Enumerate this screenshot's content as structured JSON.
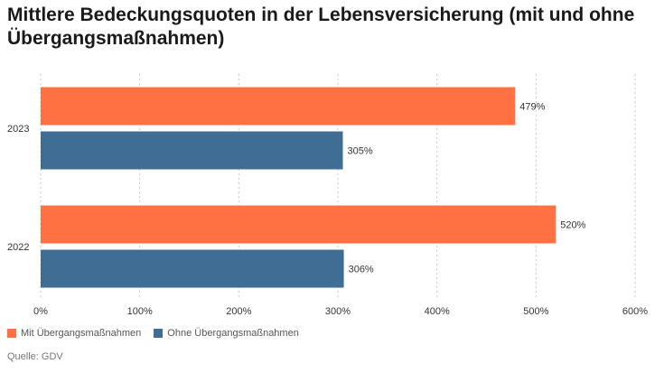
{
  "chart_data": {
    "type": "bar",
    "orientation": "horizontal",
    "title": "Mittlere Bedeckungsquoten in der Lebensversicherung (mit und ohne Übergangsmaßnahmen)",
    "categories": [
      "2023",
      "2022"
    ],
    "series": [
      {
        "name": "Mit Übergangsmaßnahmen",
        "values": [
          479,
          520
        ],
        "labels": [
          "479%",
          "520%"
        ],
        "color": "#ff7043"
      },
      {
        "name": "Ohne Übergangsmaßnahmen",
        "values": [
          305,
          306
        ],
        "labels": [
          "305%",
          "306%"
        ],
        "color": "#3f6d94"
      }
    ],
    "xlim": [
      0,
      600
    ],
    "xticks": [
      0,
      100,
      200,
      300,
      400,
      500,
      600
    ],
    "xtick_labels": [
      "0%",
      "100%",
      "200%",
      "300%",
      "400%",
      "500%",
      "600%"
    ],
    "grid": "vertical-dashed",
    "legend_position": "bottom-left",
    "source": "Quelle: GDV"
  }
}
